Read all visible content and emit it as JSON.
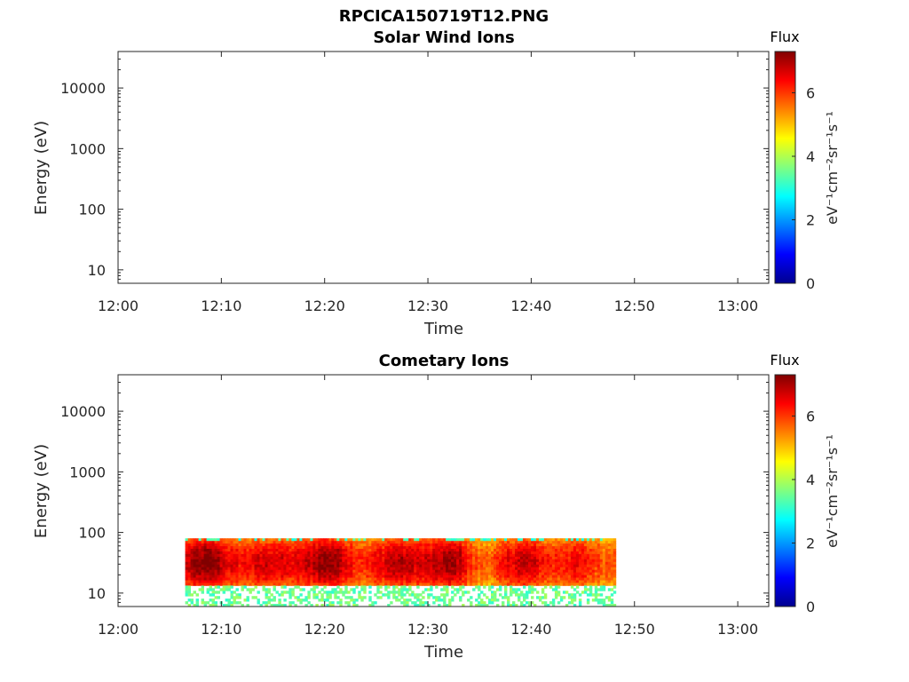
{
  "figure_title": "RPCICA150719T12.PNG",
  "colormap": [
    "#00008f",
    "#0000ff",
    "#0080ff",
    "#00ffff",
    "#80ff80",
    "#ffff00",
    "#ff8000",
    "#ff0000",
    "#800000"
  ],
  "chart_data": [
    {
      "type": "heatmap",
      "title": "Solar Wind Ions",
      "xlabel": "Time",
      "ylabel": "Energy (eV)",
      "xticks": [
        "12:00",
        "12:10",
        "12:20",
        "12:30",
        "12:40",
        "12:50",
        "13:00"
      ],
      "xlim_minutes": [
        0,
        63
      ],
      "yscale": "log",
      "ylim": [
        6,
        40000
      ],
      "yticks": [
        {
          "value": 10,
          "label": "10"
        },
        {
          "value": 100,
          "label": "100"
        },
        {
          "value": 1000,
          "label": "1000"
        },
        {
          "value": 10000,
          "label": "10000"
        }
      ],
      "colorbar": {
        "title": "Flux",
        "label": "eV⁻¹cm⁻²sr⁻¹s⁻¹",
        "range": [
          0,
          7.3
        ],
        "ticks": [
          {
            "value": 0,
            "label": "0"
          },
          {
            "value": 2,
            "label": "2"
          },
          {
            "value": 4,
            "label": "4"
          },
          {
            "value": 6,
            "label": "6"
          }
        ]
      },
      "data_region": null
    },
    {
      "type": "heatmap",
      "title": "Cometary Ions",
      "xlabel": "Time",
      "ylabel": "Energy (eV)",
      "xticks": [
        "12:00",
        "12:10",
        "12:20",
        "12:30",
        "12:40",
        "12:50",
        "13:00"
      ],
      "xlim_minutes": [
        0,
        63
      ],
      "yscale": "log",
      "ylim": [
        6,
        40000
      ],
      "yticks": [
        {
          "value": 10,
          "label": "10"
        },
        {
          "value": 100,
          "label": "100"
        },
        {
          "value": 1000,
          "label": "1000"
        },
        {
          "value": 10000,
          "label": "10000"
        }
      ],
      "colorbar": {
        "title": "Flux",
        "label": "eV⁻¹cm⁻²sr⁻¹s⁻¹",
        "range": [
          0,
          7.3
        ],
        "ticks": [
          {
            "value": 0,
            "label": "0"
          },
          {
            "value": 2,
            "label": "2"
          },
          {
            "value": 4,
            "label": "4"
          },
          {
            "value": 6,
            "label": "6"
          }
        ]
      },
      "data_region": {
        "t_start_minutes": 6.5,
        "t_end_minutes": 48.2,
        "e_min": 6,
        "e_max": 80,
        "peak_flux": 7.3,
        "peak_energy_range": [
          18,
          55
        ]
      }
    }
  ]
}
